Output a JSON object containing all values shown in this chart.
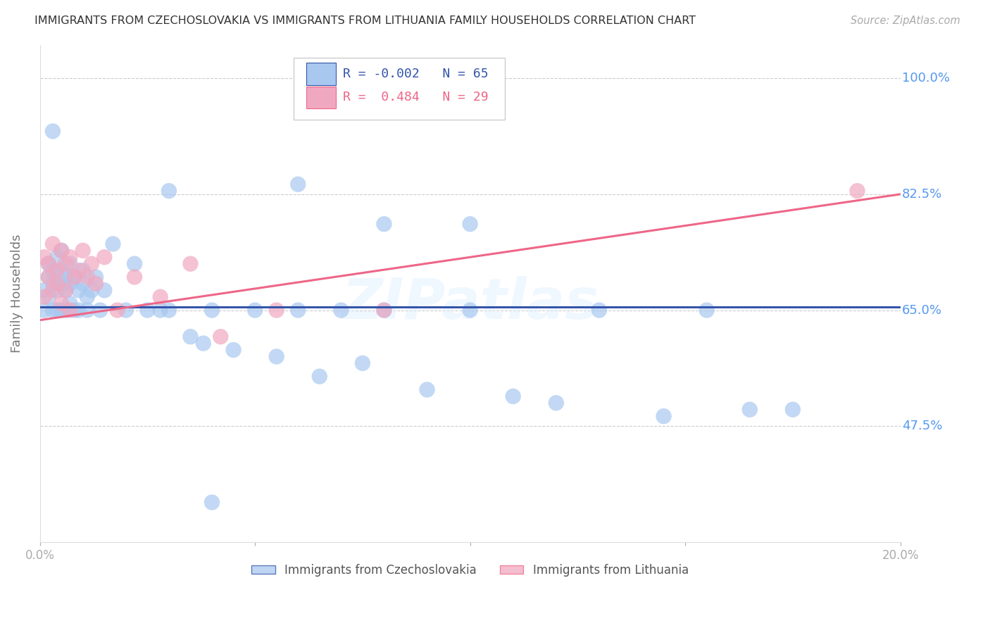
{
  "title": "IMMIGRANTS FROM CZECHOSLOVAKIA VS IMMIGRANTS FROM LITHUANIA FAMILY HOUSEHOLDS CORRELATION CHART",
  "source": "Source: ZipAtlas.com",
  "ylabel": "Family Households",
  "xlim": [
    0.0,
    0.2
  ],
  "ylim": [
    0.3,
    1.05
  ],
  "yticks": [
    0.475,
    0.65,
    0.825,
    1.0
  ],
  "ytick_labels": [
    "47.5%",
    "65.0%",
    "82.5%",
    "100.0%"
  ],
  "xticks": [
    0.0,
    0.05,
    0.1,
    0.15,
    0.2
  ],
  "xtick_labels": [
    "0.0%",
    "",
    "",
    "",
    "20.0%"
  ],
  "legend_R1": "-0.002",
  "legend_N1": "65",
  "legend_R2": " 0.484",
  "legend_N2": "29",
  "color_czech": "#A8C8F0",
  "color_lith": "#F0A8C0",
  "color_czech_line": "#3355AA",
  "color_lith_line": "#EE6688",
  "color_axis_labels": "#5599EE",
  "watermark": "ZIPatlas",
  "background_color": "#FFFFFF",
  "czech_x": [
    0.001,
    0.001,
    0.002,
    0.002,
    0.002,
    0.003,
    0.003,
    0.003,
    0.003,
    0.004,
    0.004,
    0.004,
    0.005,
    0.005,
    0.005,
    0.005,
    0.006,
    0.006,
    0.006,
    0.007,
    0.007,
    0.007,
    0.008,
    0.008,
    0.009,
    0.009,
    0.01,
    0.01,
    0.011,
    0.011,
    0.012,
    0.013,
    0.014,
    0.015,
    0.017,
    0.02,
    0.022,
    0.025,
    0.028,
    0.03,
    0.035,
    0.038,
    0.04,
    0.045,
    0.05,
    0.055,
    0.06,
    0.065,
    0.07,
    0.075,
    0.08,
    0.09,
    0.1,
    0.11,
    0.12,
    0.13,
    0.145,
    0.155,
    0.165,
    0.175,
    0.03,
    0.06,
    0.08,
    0.1,
    0.04
  ],
  "czech_y": [
    0.68,
    0.65,
    0.7,
    0.67,
    0.72,
    0.92,
    0.69,
    0.71,
    0.65,
    0.73,
    0.68,
    0.65,
    0.71,
    0.69,
    0.74,
    0.65,
    0.7,
    0.68,
    0.65,
    0.72,
    0.69,
    0.66,
    0.7,
    0.65,
    0.68,
    0.65,
    0.69,
    0.71,
    0.67,
    0.65,
    0.68,
    0.7,
    0.65,
    0.68,
    0.75,
    0.65,
    0.72,
    0.65,
    0.65,
    0.65,
    0.61,
    0.6,
    0.65,
    0.59,
    0.65,
    0.58,
    0.65,
    0.55,
    0.65,
    0.57,
    0.65,
    0.53,
    0.65,
    0.52,
    0.51,
    0.65,
    0.49,
    0.65,
    0.5,
    0.5,
    0.83,
    0.84,
    0.78,
    0.78,
    0.36
  ],
  "lith_x": [
    0.001,
    0.001,
    0.002,
    0.002,
    0.003,
    0.003,
    0.004,
    0.004,
    0.005,
    0.005,
    0.006,
    0.006,
    0.007,
    0.007,
    0.008,
    0.009,
    0.01,
    0.011,
    0.012,
    0.013,
    0.015,
    0.018,
    0.022,
    0.028,
    0.035,
    0.042,
    0.055,
    0.08,
    0.19
  ],
  "lith_y": [
    0.67,
    0.73,
    0.7,
    0.72,
    0.68,
    0.75,
    0.71,
    0.69,
    0.74,
    0.66,
    0.72,
    0.68,
    0.73,
    0.65,
    0.7,
    0.71,
    0.74,
    0.7,
    0.72,
    0.69,
    0.73,
    0.65,
    0.7,
    0.67,
    0.72,
    0.61,
    0.65,
    0.65,
    0.83
  ],
  "czech_line_y0": 0.655,
  "czech_line_y1": 0.655,
  "lith_line_y0": 0.635,
  "lith_line_y1": 0.825
}
